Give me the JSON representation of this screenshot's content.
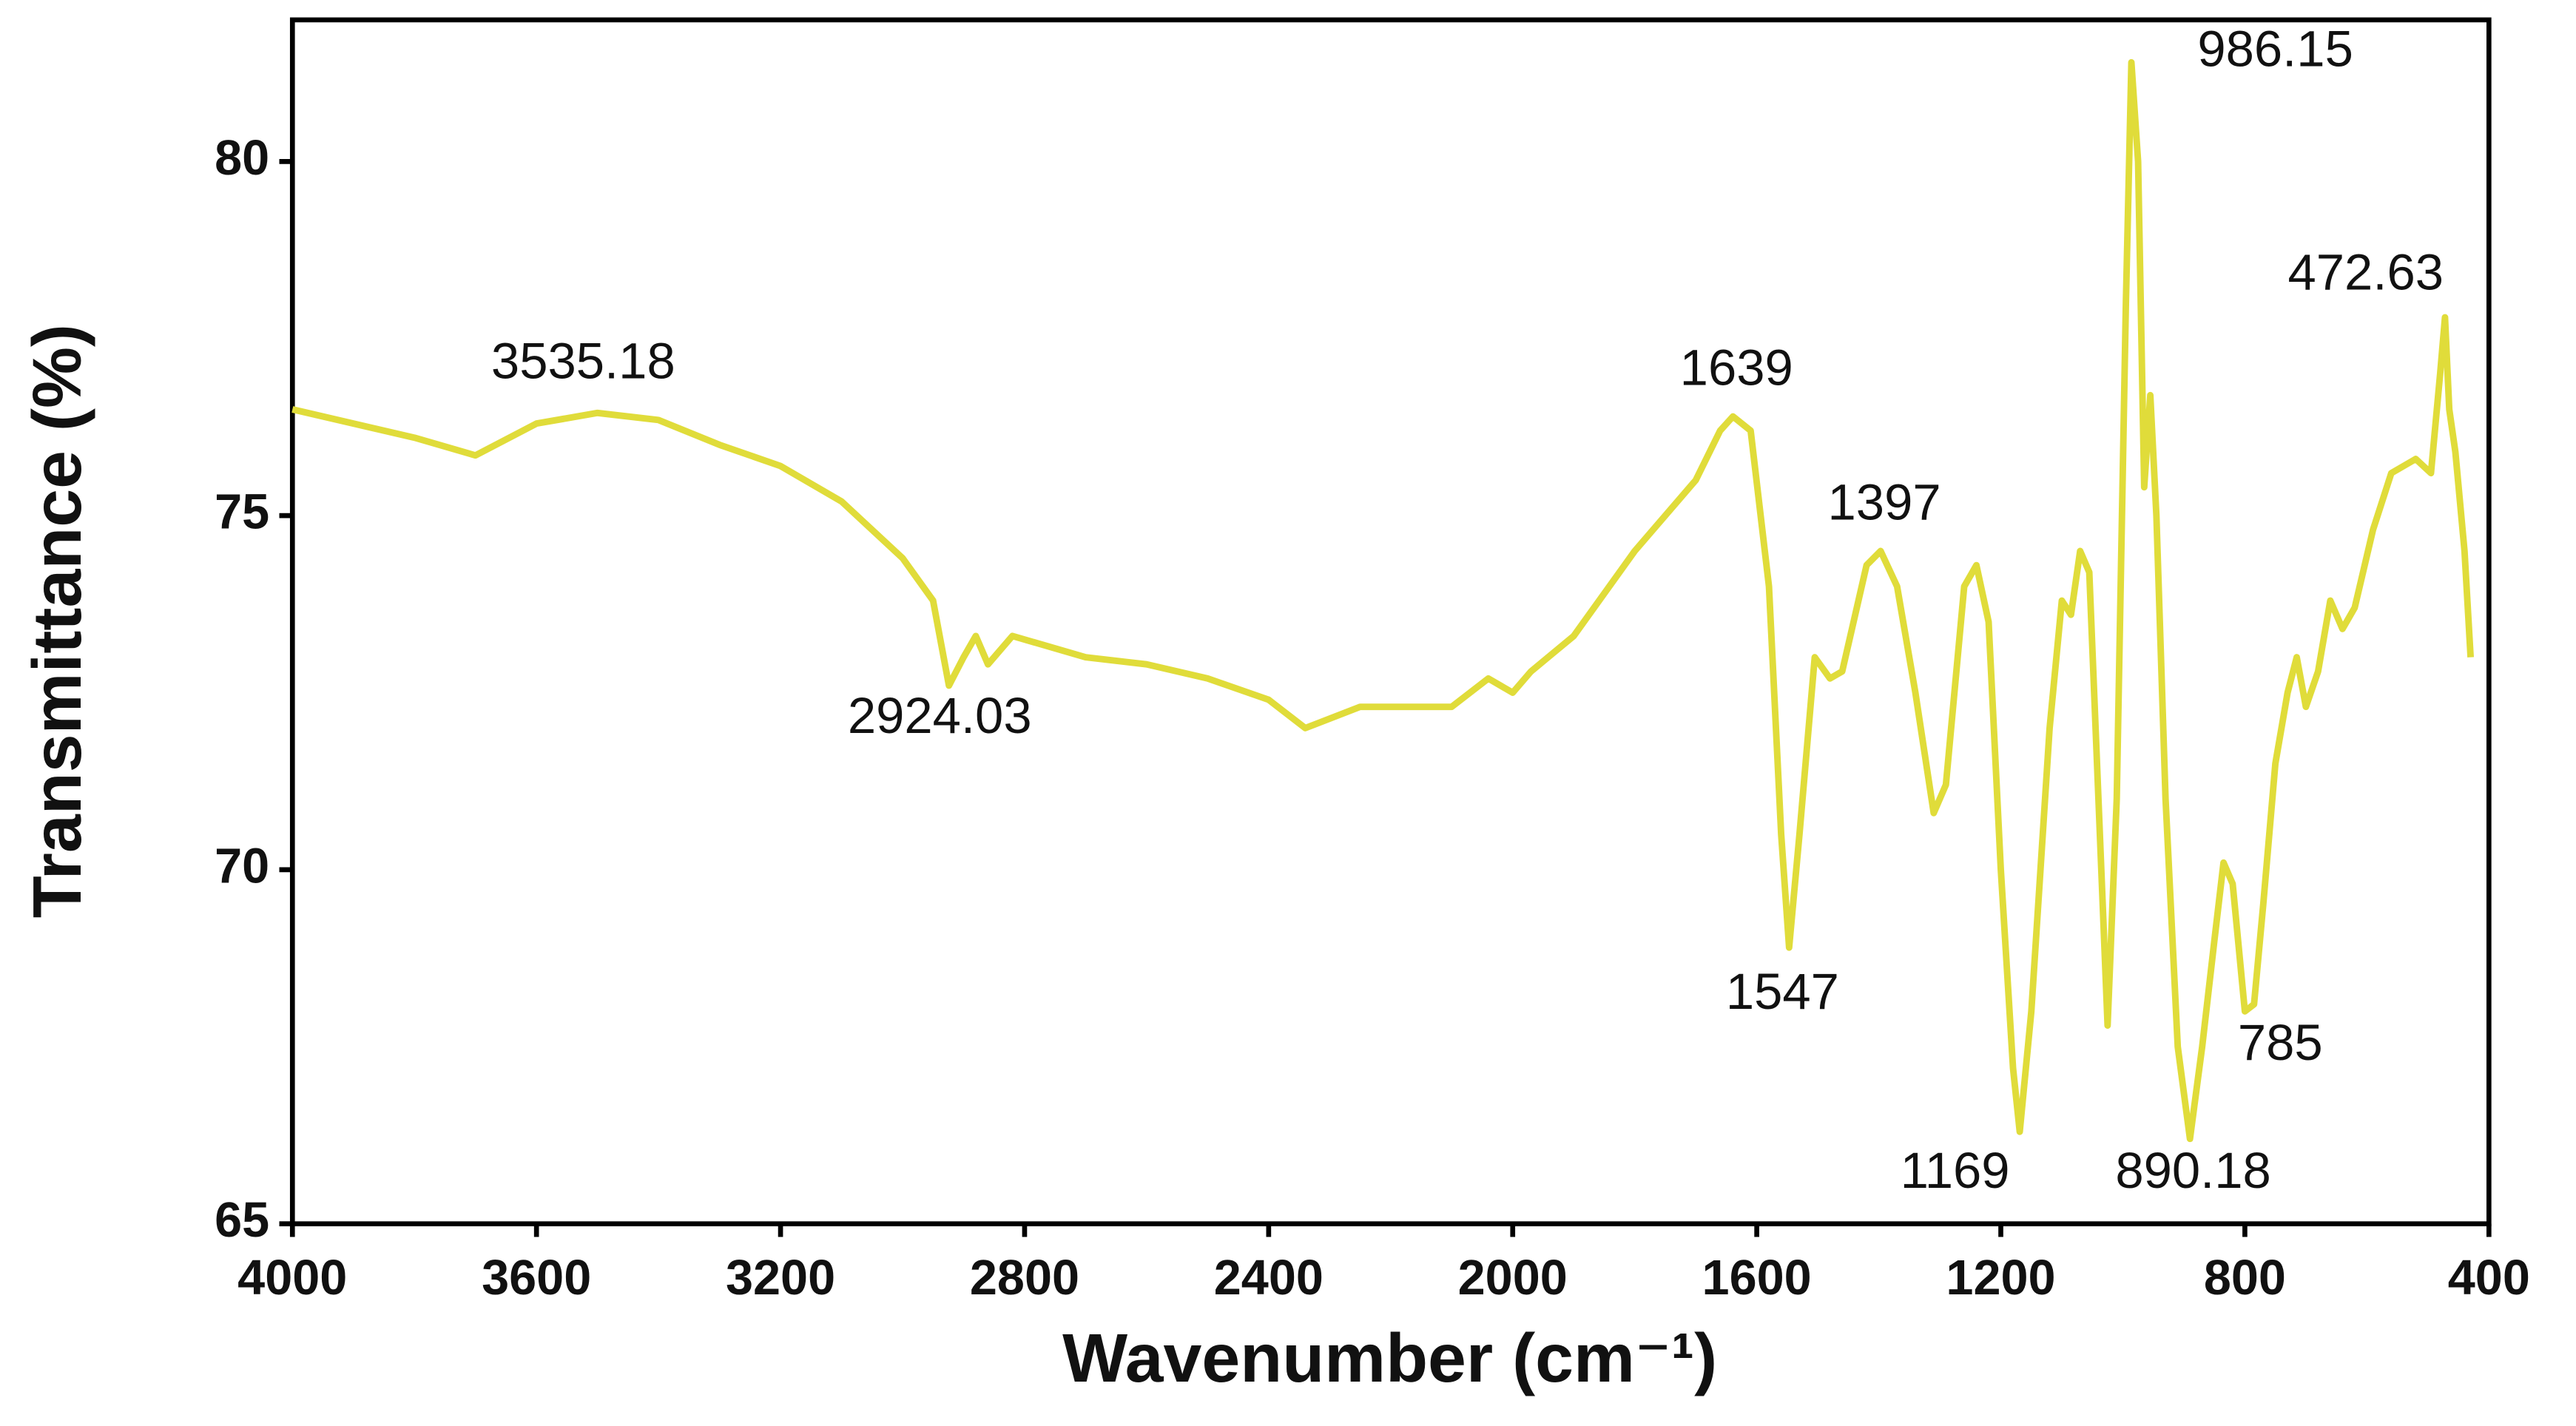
{
  "chart_data": {
    "type": "line",
    "xlabel": "Wavenumber (cm⁻¹)",
    "ylabel": "Transmittance (%)",
    "xlim": [
      4000,
      400
    ],
    "ylim": [
      65,
      82
    ],
    "xticks": [
      4000,
      3600,
      3200,
      2800,
      2400,
      2000,
      1600,
      1200,
      800,
      400
    ],
    "yticks": [
      65,
      70,
      75,
      80
    ],
    "annotations": [
      "3535.18",
      "2924.03",
      "1639",
      "1397",
      "1547",
      "1169",
      "890.18",
      "785",
      "986.15",
      "472.63"
    ],
    "series": [
      {
        "color": "#e0dc3a",
        "x": [
          4000,
          3800,
          3700,
          3600,
          3500,
          3400,
          3300,
          3200,
          3100,
          3000,
          2950,
          2924,
          2900,
          2880,
          2860,
          2820,
          2700,
          2600,
          2500,
          2400,
          2340,
          2250,
          2100,
          2040,
          2000,
          1970,
          1900,
          1800,
          1700,
          1660,
          1639,
          1610,
          1580,
          1560,
          1547,
          1530,
          1505,
          1480,
          1460,
          1420,
          1397,
          1370,
          1340,
          1310,
          1290,
          1260,
          1240,
          1220,
          1200,
          1180,
          1169,
          1150,
          1120,
          1100,
          1085,
          1070,
          1055,
          1040,
          1025,
          1010,
          995,
          986,
          975,
          965,
          955,
          945,
          930,
          910,
          890,
          870,
          850,
          835,
          820,
          800,
          785,
          770,
          750,
          730,
          715,
          700,
          680,
          660,
          640,
          620,
          590,
          560,
          520,
          495,
          480,
          472,
          465,
          455,
          440,
          430
        ],
        "values": [
          76.5,
          76.1,
          75.85,
          76.3,
          76.45,
          76.35,
          76.0,
          75.7,
          75.2,
          74.4,
          73.8,
          72.6,
          73.0,
          73.3,
          72.9,
          73.3,
          73.0,
          72.9,
          72.7,
          72.4,
          72.0,
          72.3,
          72.3,
          72.7,
          72.5,
          72.8,
          73.3,
          74.5,
          75.5,
          76.2,
          76.4,
          76.2,
          74.0,
          70.5,
          68.9,
          70.5,
          73.0,
          72.7,
          72.8,
          74.3,
          74.5,
          74.0,
          72.5,
          70.8,
          71.2,
          74.0,
          74.3,
          73.5,
          70.0,
          67.2,
          66.3,
          68.0,
          72.0,
          73.8,
          73.6,
          74.5,
          74.2,
          71.0,
          67.8,
          71.0,
          78.0,
          81.4,
          80.0,
          75.4,
          76.7,
          75.0,
          71.0,
          67.5,
          66.2,
          67.5,
          69.0,
          70.1,
          69.8,
          68.0,
          68.1,
          69.5,
          71.5,
          72.5,
          73.0,
          72.3,
          72.8,
          73.8,
          73.4,
          73.7,
          74.8,
          75.6,
          75.8,
          75.6,
          77.0,
          77.8,
          76.5,
          75.9,
          74.5,
          73.0
        ]
      }
    ]
  }
}
